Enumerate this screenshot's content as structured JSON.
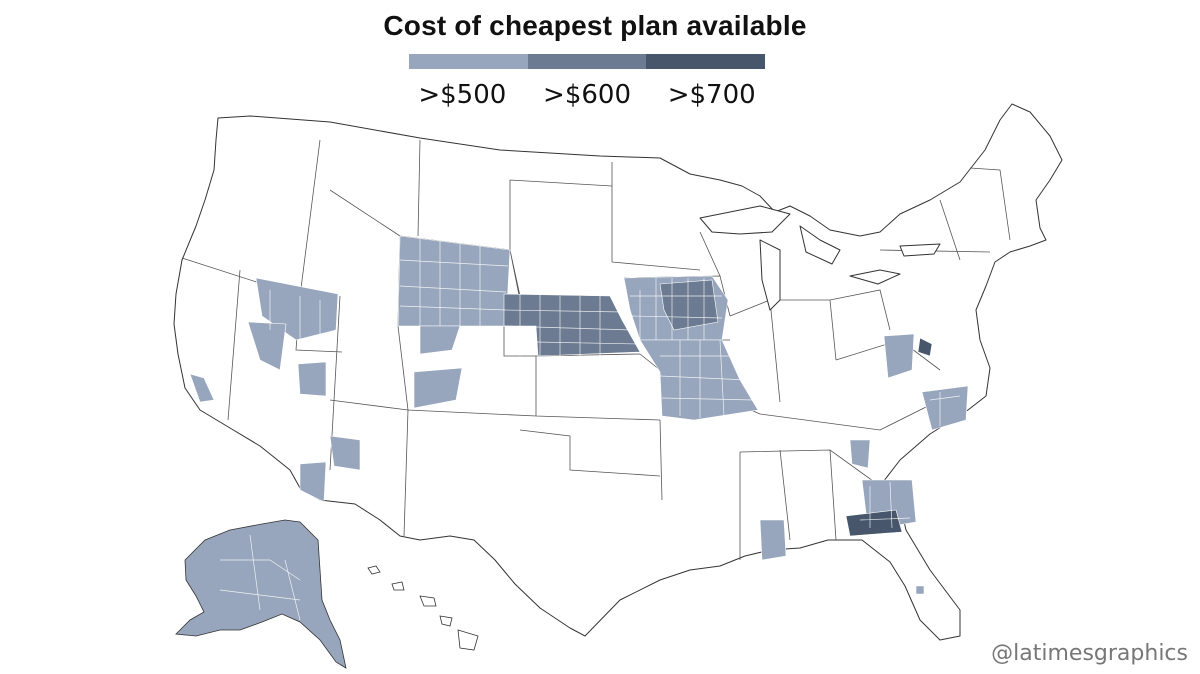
{
  "title": "Cost of cheapest plan available",
  "legend": [
    {
      "label": ">$500",
      "color": "#97a6bc"
    },
    {
      "label": ">$600",
      "color": "#6c7b92"
    },
    {
      "label": ">$700",
      "color": "#48566b"
    }
  ],
  "regions": [
    {
      "name": "Wyoming",
      "tier": 0
    },
    {
      "name": "Nebraska",
      "tier": 1
    },
    {
      "name": "Iowa",
      "tier": 0
    },
    {
      "name": "Missouri",
      "tier": 0
    },
    {
      "name": "Nevada",
      "tier": 0
    },
    {
      "name": "Arizona",
      "tier": 0
    },
    {
      "name": "Colorado",
      "tier": 0
    },
    {
      "name": "California",
      "tier": 0
    },
    {
      "name": "Alaska",
      "tier": 0
    },
    {
      "name": "Virginia",
      "tier": 0
    },
    {
      "name": "North Carolina",
      "tier": 0
    },
    {
      "name": "Georgia",
      "tier": 0
    },
    {
      "name": "Alabama",
      "tier": 0
    },
    {
      "name": "Florida",
      "tier": 0
    }
  ],
  "credit": "@latimesgraphics"
}
